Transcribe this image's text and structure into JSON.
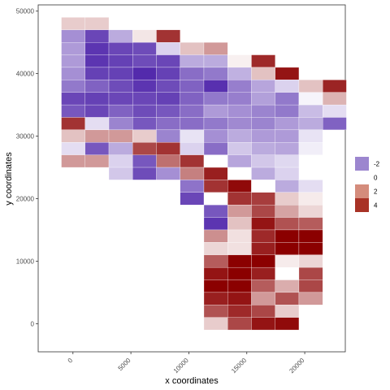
{
  "chart_data": {
    "type": "heatmap",
    "xlabel": "x coordinates",
    "ylabel": "y coordinates",
    "xlim": [
      -3000,
      23500
    ],
    "ylim": [
      -4500,
      51000
    ],
    "x_ticks": [
      0,
      5000,
      10000,
      15000,
      20000
    ],
    "y_ticks": [
      0,
      10000,
      20000,
      30000,
      40000,
      50000
    ],
    "x_tick_labels": [
      "0",
      "5000",
      "10000",
      "15000",
      "20000"
    ],
    "y_tick_labels": [
      "0",
      "10000",
      "20000",
      "30000",
      "40000",
      "50000"
    ],
    "grid": false,
    "legend": {
      "position": "right",
      "entries": [
        {
          "label": "-2",
          "color": "#9c86cf"
        },
        {
          "label": "0",
          "color": "#ffffff"
        },
        {
          "label": "2",
          "color": "#d48c7c"
        },
        {
          "label": "4",
          "color": "#a83226"
        }
      ]
    },
    "colors": {
      "low": "#4a1fa8",
      "mid": "#ffffff",
      "high": "#8b0000"
    },
    "tile_width": 2050,
    "tile_height": 2000,
    "rows": [
      {
        "y": 47000,
        "x_start": -1000,
        "values": [
          1.0,
          1.0
        ]
      },
      {
        "y": 45000,
        "x_start": -1000,
        "values": [
          -2,
          -3.3,
          -1.5,
          0.5,
          4
        ]
      },
      {
        "y": 43000,
        "x_start": -1000,
        "values": [
          -1.8,
          -3.6,
          -3.3,
          -3.2,
          -0.8,
          1.2,
          2
        ]
      },
      {
        "y": 41000,
        "x_start": -1000,
        "values": [
          -1.8,
          -3.6,
          -3.4,
          -3.2,
          -3.3,
          -1.5,
          -1.5,
          0.3,
          4.2
        ]
      },
      {
        "y": 39000,
        "x_start": -1000,
        "values": [
          -2,
          -3.4,
          -3.4,
          -3.8,
          -3.4,
          -2.6,
          -2.4,
          -1.4,
          1.2,
          4.6
        ]
      },
      {
        "y": 37000,
        "x_start": -1000,
        "values": [
          -2.4,
          -2.8,
          -3.2,
          -3.6,
          -3.2,
          -2.8,
          -3.7,
          -2.3,
          -1.6,
          -0.8,
          1.2,
          4.3
        ]
      },
      {
        "y": 35000,
        "x_start": -1000,
        "values": [
          -3.3,
          -3.4,
          -3.3,
          -3.3,
          -3.4,
          -2.8,
          -2.4,
          -2.3,
          -1.7,
          -2.4,
          -0.2,
          1.5
        ]
      },
      {
        "y": 33000,
        "x_start": -1000,
        "values": [
          -3.0,
          -3.3,
          -2.8,
          -3.2,
          -3.0,
          -2.6,
          -1.8,
          -2.0,
          -2.2,
          -2.4,
          -1.2,
          -0.6
        ]
      },
      {
        "y": 31000,
        "x_start": -1000,
        "values": [
          4,
          -0.6,
          -2.2,
          -3.0,
          -2.6,
          -2.6,
          -2.4,
          -2.1,
          -2.2,
          -1.8,
          -1.5,
          -2.8
        ]
      },
      {
        "y": 29000,
        "x_start": -1000,
        "values": [
          1.2,
          2.0,
          2.0,
          1.0,
          -2.2,
          -0.5,
          -2.0,
          -1.5,
          -1.8,
          -1.8,
          -0.5
        ]
      },
      {
        "y": 27000,
        "x_start": -1000,
        "values": [
          -0.6,
          -3.0,
          -1.5,
          3.6,
          4.0,
          -0.8,
          -2.6,
          -1.0,
          -1.5,
          -1.6,
          -0.3
        ]
      },
      {
        "y": 25000,
        "x_start": -1000,
        "values": [
          2.0,
          2.0,
          -0.8,
          -3.0,
          2.8,
          4.0,
          0,
          -1.6,
          -1.0,
          -0.7
        ]
      },
      {
        "y": 23000,
        "x_start": 3100,
        "values": [
          -1.0,
          -3.2,
          -2.0,
          2.5,
          4.4,
          0,
          -1.5,
          -0.8
        ]
      },
      {
        "y": 21000,
        "x_start": 9250,
        "values": [
          -2.5,
          4.0,
          4.8,
          0,
          -1.5,
          -0.6
        ]
      },
      {
        "y": 19000,
        "x_start": 9250,
        "values": [
          -3.3,
          null,
          4.0,
          3.8,
          1.0,
          0.4
        ]
      },
      {
        "y": 17000,
        "x_start": 11300,
        "values": [
          -3.0,
          2.0,
          3.6,
          1.8,
          0.8
        ]
      },
      {
        "y": 15000,
        "x_start": 11300,
        "values": [
          -3.6,
          1.2,
          4.6,
          3.4,
          3.2
        ]
      },
      {
        "y": 13000,
        "x_start": 11300,
        "values": [
          2.2,
          0.6,
          4.2,
          5.0,
          5.0
        ]
      },
      {
        "y": 11000,
        "x_start": 11300,
        "values": [
          0.8,
          0.6,
          4.4,
          5.0,
          5.0
        ]
      },
      {
        "y": 9000,
        "x_start": 11300,
        "values": [
          3.2,
          5.0,
          5.0,
          0.4,
          0.8
        ]
      },
      {
        "y": 7000,
        "x_start": 11300,
        "values": [
          4.6,
          5.0,
          4.4,
          0,
          3.6
        ]
      },
      {
        "y": 5000,
        "x_start": 11300,
        "values": [
          5.0,
          5.0,
          3.2,
          1.6,
          3.6
        ]
      },
      {
        "y": 3000,
        "x_start": 11300,
        "values": [
          4.4,
          4.6,
          2.0,
          3.4,
          2.0
        ]
      },
      {
        "y": 1000,
        "x_start": 11300,
        "values": [
          3.4,
          4.2,
          3.6,
          1.0
        ]
      },
      {
        "y": -1000,
        "x_start": 11300,
        "values": [
          1.0,
          3.6,
          4.6,
          4.8
        ]
      }
    ]
  }
}
